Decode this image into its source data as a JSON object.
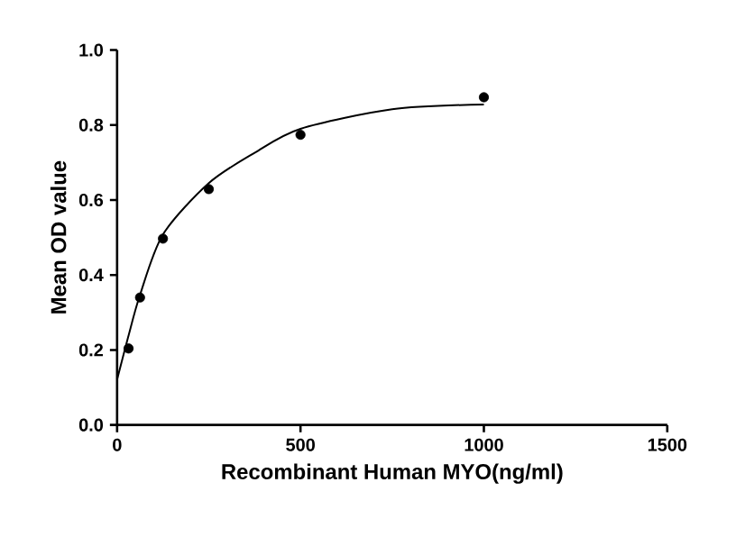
{
  "chart_data": {
    "type": "scatter",
    "xlabel": "Recombinant Human MYO(ng/ml)",
    "ylabel": "Mean OD value",
    "xlim": [
      0,
      1500
    ],
    "xticks": [
      0,
      500,
      1000,
      1500
    ],
    "ylim": [
      0,
      1.0
    ],
    "yticks": [
      {
        "value": 0,
        "label": "0.0"
      },
      {
        "value": 0.2,
        "label": "0.2"
      },
      {
        "value": 0.4,
        "label": "0.4"
      },
      {
        "value": 0.6,
        "label": "0.6"
      },
      {
        "value": 0.8,
        "label": "0.8"
      },
      {
        "value": 1.0,
        "label": "1.0"
      }
    ],
    "marker": "circle",
    "grid": false,
    "series": [
      {
        "color": "#000000",
        "x": [
          31.25,
          62.5,
          125,
          250,
          500,
          1000
        ],
        "values": [
          0.204,
          0.34,
          0.497,
          0.629,
          0.774,
          0.874
        ]
      },
      {
        "type": "line",
        "color": "#000000",
        "marker": "none",
        "x": [
          0,
          30,
          62.5,
          125,
          250,
          375,
          500,
          750,
          1000
        ],
        "values": [
          0.121,
          0.234,
          0.347,
          0.508,
          0.645,
          0.726,
          0.79,
          0.842,
          0.855
        ]
      }
    ]
  }
}
